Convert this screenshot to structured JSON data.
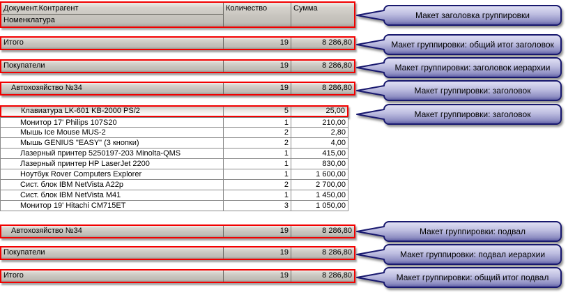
{
  "colors": {
    "highlight_border": "#f20000",
    "callout_border": "#18186e",
    "callout_fill_top": "#e3e3f5",
    "callout_fill_bottom": "#5c5ca2",
    "group_bar_fill": "#c8c5bf"
  },
  "table": {
    "header": {
      "line1": "Документ.Контрагент",
      "line2": "Номенклатура",
      "qty": "Количество",
      "sum": "Сумма"
    },
    "groups": [
      {
        "id": "total-header",
        "label": "Итого",
        "qty": "19",
        "sum": "8 286,80"
      },
      {
        "id": "hierarchy-header",
        "label": "Покупатели",
        "qty": "19",
        "sum": "8 286,80"
      },
      {
        "id": "group-header",
        "label": "Автохозяйство №34",
        "qty": "19",
        "sum": "8 286,80"
      },
      {
        "id": "group-footer",
        "label": "Автохозяйство №34",
        "qty": "19",
        "sum": "8 286,80"
      },
      {
        "id": "hierarchy-footer",
        "label": "Покупатели",
        "qty": "19",
        "sum": "8 286,80"
      },
      {
        "id": "total-footer",
        "label": "Итого",
        "qty": "19",
        "sum": "8 286,80"
      }
    ],
    "items": [
      {
        "name": "Клавиатура LK-601 KB-2000 PS/2",
        "qty": "5",
        "sum": "25,00",
        "highlighted": true
      },
      {
        "name": "Монитор 17' Philips 107S20",
        "qty": "1",
        "sum": "210,00",
        "highlighted": false
      },
      {
        "name": "Мышь Ice Mouse MUS-2",
        "qty": "2",
        "sum": "2,80",
        "highlighted": false
      },
      {
        "name": "Мышь GENIUS \"EASY\" (3 кнопки)",
        "qty": "2",
        "sum": "4,00",
        "highlighted": false
      },
      {
        "name": "Лазерный принтер 5250197-203 Minolta-QMS",
        "qty": "1",
        "sum": "415,00",
        "highlighted": false
      },
      {
        "name": "Лазерный принтер HP LaserJet 2200",
        "qty": "1",
        "sum": "830,00",
        "highlighted": false
      },
      {
        "name": "Ноутбук Rover Computers Explorer",
        "qty": "1",
        "sum": "1 600,00",
        "highlighted": false
      },
      {
        "name": "Сист. блок IBM NetVista A22p",
        "qty": "2",
        "sum": "2 700,00",
        "highlighted": false
      },
      {
        "name": "Сист. блок IBM NetVista M41",
        "qty": "1",
        "sum": "1 450,00",
        "highlighted": false
      },
      {
        "name": "Монитор 19' Hitachi CM715ET",
        "qty": "3",
        "sum": "1 050,00",
        "highlighted": false
      }
    ]
  },
  "callouts": [
    "Макет заголовка группировки",
    "Макет группировки: общий итог заголовок",
    "Макет группировки: заголовок иерархии",
    "Макет группировки: заголовок",
    "Макет группировки: заголовок",
    "Макет группировки: подвал",
    "Макет группировки: подвал иерархии",
    "Макет группировки: общий итог подвал"
  ]
}
